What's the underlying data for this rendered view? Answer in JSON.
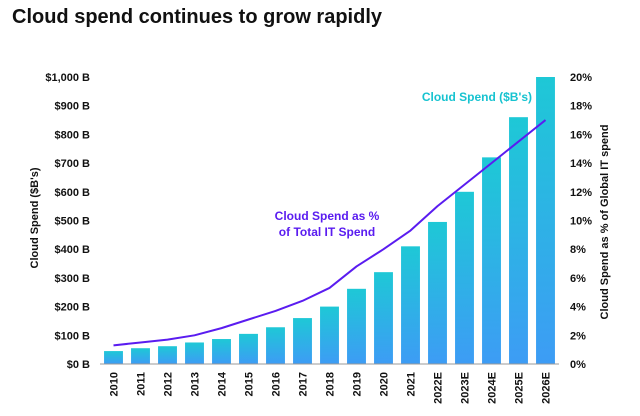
{
  "title": "Cloud spend continues to grow rapidly",
  "chart_data": {
    "type": "bar",
    "categories": [
      "2010",
      "2011",
      "2012",
      "2013",
      "2014",
      "2015",
      "2016",
      "2017",
      "2018",
      "2019",
      "2020",
      "2021",
      "2022E",
      "2023E",
      "2024E",
      "2025E",
      "2026E"
    ],
    "series": [
      {
        "name": "Cloud Spend ($B's)",
        "type": "bar",
        "axis": "left",
        "values": [
          45,
          55,
          62,
          75,
          87,
          105,
          128,
          160,
          200,
          262,
          320,
          410,
          495,
          600,
          720,
          860,
          1000
        ]
      },
      {
        "name": "Cloud Spend as % of Total IT Spend",
        "type": "line",
        "axis": "right",
        "values": [
          1.3,
          1.5,
          1.7,
          2.0,
          2.5,
          3.1,
          3.7,
          4.4,
          5.3,
          6.8,
          8.0,
          9.3,
          11.0,
          12.5,
          14.0,
          15.5,
          17.0
        ]
      }
    ],
    "ylabel": "Cloud Spend ($B's)",
    "y2label": "Cloud Spend as % of Global IT spend",
    "ylim": [
      0,
      1000
    ],
    "y2lim": [
      0,
      20
    ],
    "yticks": [
      "$0 B",
      "$100 B",
      "$200 B",
      "$300 B",
      "$400 B",
      "$500 B",
      "$600 B",
      "$700 B",
      "$800 B",
      "$900 B",
      "$1,000 B"
    ],
    "y2ticks": [
      "0%",
      "2%",
      "4%",
      "6%",
      "8%",
      "10%",
      "12%",
      "14%",
      "16%",
      "18%",
      "20%"
    ],
    "annotations": {
      "bar_label": "Cloud Spend ($B's)",
      "line_label_1": "Cloud Spend as %",
      "line_label_2": "of Total IT Spend"
    },
    "colors": {
      "bar_top": "#1ec8d6",
      "bar_bottom": "#3d9cf5",
      "line": "#5a1cf0",
      "bar_label": "#17c3d0",
      "line_label": "#5a1cf0"
    },
    "grid": false
  }
}
